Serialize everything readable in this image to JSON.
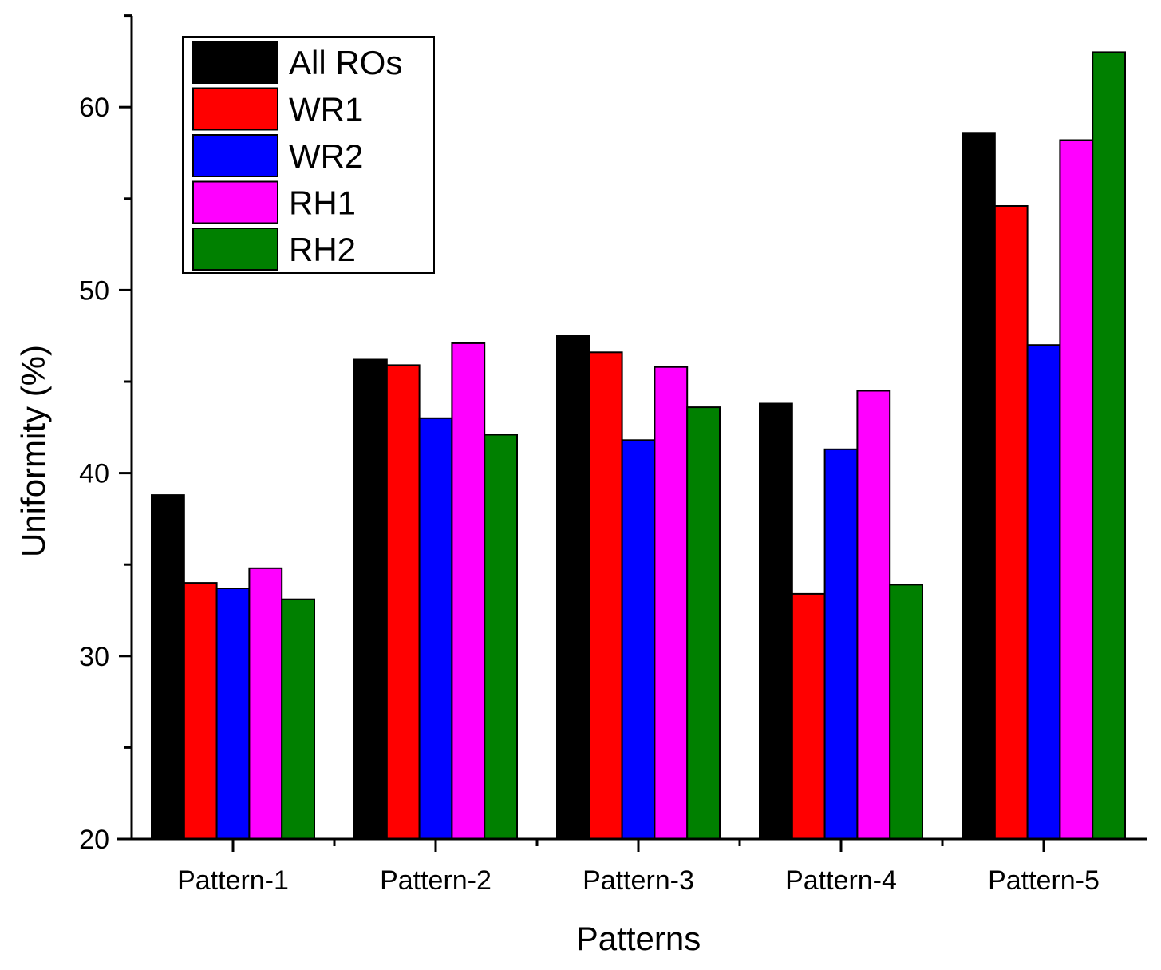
{
  "chart_data": {
    "type": "bar",
    "title": "",
    "xlabel": "Patterns",
    "ylabel": "Uniformity (%)",
    "categories": [
      "Pattern-1",
      "Pattern-2",
      "Pattern-3",
      "Pattern-4",
      "Pattern-5"
    ],
    "ylim": [
      20,
      65
    ],
    "yticks": [
      20,
      30,
      40,
      50,
      60
    ],
    "grid": false,
    "legend_position": "top-left",
    "series": [
      {
        "name": "All ROs",
        "color": "#000000",
        "values": [
          38.8,
          46.2,
          47.5,
          43.8,
          58.6
        ]
      },
      {
        "name": "WR1",
        "color": "#ff0000",
        "values": [
          34.0,
          45.9,
          46.6,
          33.4,
          54.6
        ]
      },
      {
        "name": "WR2",
        "color": "#0000ff",
        "values": [
          33.7,
          43.0,
          41.8,
          41.3,
          47.0
        ]
      },
      {
        "name": "RH1",
        "color": "#ff00ff",
        "values": [
          34.8,
          47.1,
          45.8,
          44.5,
          58.2
        ]
      },
      {
        "name": "RH2",
        "color": "#008000",
        "values": [
          33.1,
          42.1,
          43.6,
          33.9,
          63.0
        ]
      }
    ]
  }
}
